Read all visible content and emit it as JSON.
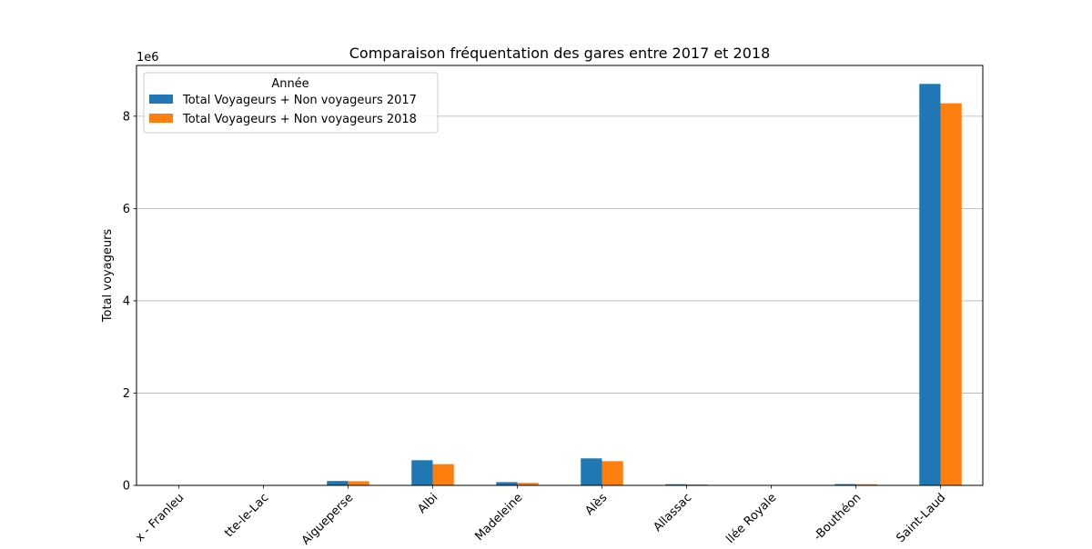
{
  "chart_data": {
    "type": "bar",
    "title": "Comparaison fréquentation des gares entre 2017 et 2018",
    "xlabel": "",
    "ylabel": "Total voyageurs",
    "y_multiplier_label": "1e6",
    "y_multiplier": 1000000,
    "ylim": [
      0,
      9100000
    ],
    "yticks": [
      0,
      2000000,
      4000000,
      6000000,
      8000000
    ],
    "ytick_labels": [
      "0",
      "2",
      "4",
      "6",
      "8"
    ],
    "grid": "y",
    "legend": {
      "title": "Année",
      "placement": "top-left"
    },
    "categories": [
      "Abbaretz - Franleu",
      "Abbecourt - Cotterette-le-Lac",
      "Aigueperse",
      "Albi",
      "Albi - Madeleine",
      "Alès",
      "Allassac",
      "Angers - Allée Royale",
      "Andrézieux-Bouthéon",
      "Angers - Saint-Laud"
    ],
    "category_labels_visible": [
      "x - Franleu",
      "tte-le-Lac",
      "Aigueperse",
      "Albi",
      "Madeleine",
      "Alès",
      "Allassac",
      "llée Royale",
      "-Bouthéon",
      "Saint-Laud"
    ],
    "series": [
      {
        "name": "Total Voyageurs + Non voyageurs 2017",
        "color": "#1f77b4",
        "values": [
          3000,
          5000,
          95000,
          545000,
          70000,
          585000,
          25000,
          8000,
          28000,
          8700000
        ]
      },
      {
        "name": "Total Voyageurs + Non voyageurs 2018",
        "color": "#ff7f0e",
        "values": [
          2500,
          4000,
          90000,
          460000,
          55000,
          525000,
          20000,
          6000,
          26000,
          8280000
        ]
      }
    ]
  }
}
